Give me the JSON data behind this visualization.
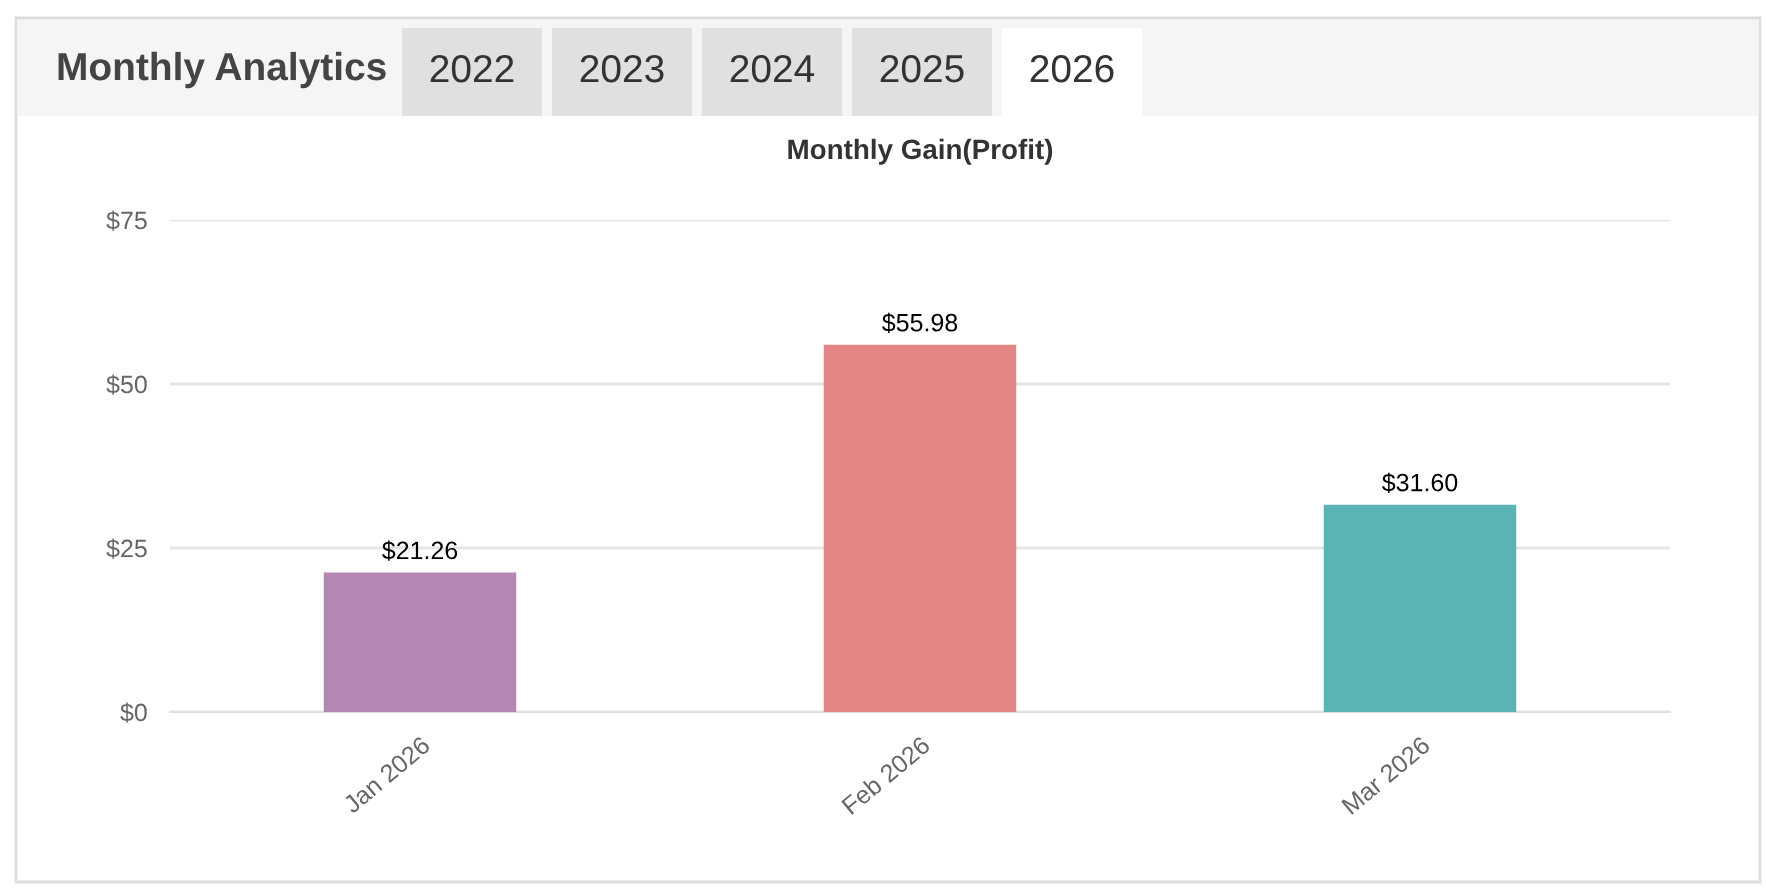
{
  "chart_data": {
    "type": "bar",
    "title": "Monthly Gain(Profit)",
    "categories": [
      "Jan 2026",
      "Feb 2026",
      "Mar 2026"
    ],
    "values": [
      21.26,
      55.98,
      31.6
    ],
    "value_labels": [
      "$21.26",
      "$55.98",
      "$31.60"
    ],
    "colors": [
      "#b486b4",
      "#e18684",
      "#5ab4b4"
    ],
    "ylim": [
      0,
      75
    ],
    "yticks": [
      {
        "value": 0,
        "label": "$0"
      },
      {
        "value": 25,
        "label": "$25"
      },
      {
        "value": 50,
        "label": "$50"
      },
      {
        "value": 75,
        "label": "$75"
      }
    ],
    "grid": "y",
    "annotations": [
      "Monthly Analytics",
      "2022",
      "2023",
      "2024",
      "2025",
      "2026"
    ]
  }
}
